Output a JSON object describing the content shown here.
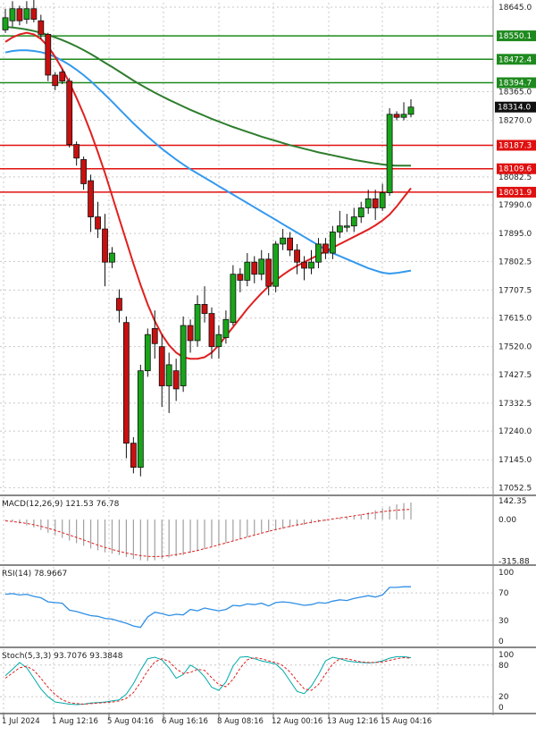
{
  "chart_data": [
    {
      "type": "candlestick",
      "panel": "price",
      "y_axis_ticks": [
        "18645.0",
        "18365.0",
        "18270.0",
        "18082.5",
        "17990.0",
        "17895.0",
        "17802.5",
        "17707.5",
        "17615.0",
        "17520.0",
        "17427.5",
        "17332.5",
        "17240.0",
        "17145.0",
        "17052.5"
      ],
      "ylim": [
        17030,
        18660
      ],
      "levels": [
        {
          "value": 18550.1,
          "label": "18550.1",
          "color": "#1e8a1e"
        },
        {
          "value": 18472.4,
          "label": "18472.4",
          "color": "#1e8a1e"
        },
        {
          "value": 18394.7,
          "label": "18394.7",
          "color": "#1e8a1e"
        },
        {
          "value": 18187.3,
          "label": "18187.3",
          "color": "#e01010"
        },
        {
          "value": 18109.6,
          "label": "18109.6",
          "color": "#e01010"
        },
        {
          "value": 18031.9,
          "label": "18031.9",
          "color": "#e01010"
        }
      ],
      "last_price": {
        "value": 18314.0,
        "label": "18314.0"
      },
      "candles": [
        [
          18570,
          18610,
          18640,
          18560
        ],
        [
          18600,
          18640,
          18665,
          18580
        ],
        [
          18640,
          18600,
          18650,
          18585
        ],
        [
          18605,
          18640,
          18665,
          18590
        ],
        [
          18640,
          18605,
          18680,
          18595
        ],
        [
          18600,
          18555,
          18620,
          18540
        ],
        [
          18555,
          18420,
          18560,
          18400
        ],
        [
          18420,
          18385,
          18430,
          18370
        ],
        [
          18430,
          18400,
          18440,
          18390
        ],
        [
          18400,
          18190,
          18410,
          18180
        ],
        [
          18190,
          18145,
          18200,
          18120
        ],
        [
          18140,
          18060,
          18150,
          18040
        ],
        [
          18070,
          17950,
          18090,
          17900
        ],
        [
          17950,
          17910,
          18000,
          17880
        ],
        [
          17910,
          17800,
          17960,
          17720
        ],
        [
          17800,
          17830,
          17850,
          17780
        ],
        [
          17680,
          17640,
          17710,
          17600
        ],
        [
          17600,
          17200,
          17620,
          17150
        ],
        [
          17200,
          17120,
          17220,
          17100
        ],
        [
          17120,
          17440,
          17460,
          17090
        ],
        [
          17440,
          17560,
          17580,
          17420
        ],
        [
          17580,
          17530,
          17640,
          17480
        ],
        [
          17520,
          17390,
          17560,
          17320
        ],
        [
          17390,
          17460,
          17500,
          17300
        ],
        [
          17440,
          17380,
          17480,
          17340
        ],
        [
          17390,
          17590,
          17620,
          17370
        ],
        [
          17590,
          17540,
          17610,
          17500
        ],
        [
          17540,
          17660,
          17690,
          17520
        ],
        [
          17660,
          17630,
          17720,
          17600
        ],
        [
          17630,
          17520,
          17650,
          17480
        ],
        [
          17520,
          17560,
          17590,
          17480
        ],
        [
          17550,
          17610,
          17640,
          17530
        ],
        [
          17600,
          17760,
          17790,
          17590
        ],
        [
          17760,
          17740,
          17780,
          17700
        ],
        [
          17740,
          17800,
          17830,
          17720
        ],
        [
          17800,
          17760,
          17820,
          17730
        ],
        [
          17760,
          17810,
          17840,
          17740
        ],
        [
          17810,
          17720,
          17830,
          17690
        ],
        [
          17720,
          17860,
          17870,
          17700
        ],
        [
          17860,
          17880,
          17910,
          17840
        ],
        [
          17880,
          17840,
          17900,
          17820
        ],
        [
          17840,
          17800,
          17860,
          17760
        ],
        [
          17800,
          17780,
          17820,
          17740
        ],
        [
          17780,
          17800,
          17840,
          17760
        ],
        [
          17800,
          17860,
          17880,
          17780
        ],
        [
          17860,
          17830,
          17880,
          17810
        ],
        [
          17830,
          17900,
          17920,
          17810
        ],
        [
          17900,
          17920,
          17970,
          17880
        ],
        [
          17920,
          17920,
          17960,
          17900
        ],
        [
          17920,
          17950,
          17980,
          17900
        ],
        [
          17950,
          17980,
          18000,
          17930
        ],
        [
          17980,
          18010,
          18040,
          17960
        ],
        [
          18010,
          17980,
          18040,
          17940
        ],
        [
          17980,
          18030,
          18060,
          17970
        ],
        [
          18030,
          18290,
          18310,
          18020
        ],
        [
          18290,
          18280,
          18300,
          18270
        ],
        [
          18280,
          18290,
          18330,
          18270
        ],
        [
          18290,
          18314,
          18340,
          18280
        ]
      ],
      "moving_averages": [
        {
          "color": "#2e7d2e",
          "values": [
            18580,
            18578,
            18575,
            18571,
            18566,
            18560,
            18553,
            18545,
            18536,
            18526,
            18515,
            18503,
            18490,
            18476,
            18461,
            18447,
            18432,
            18417,
            18402,
            18388,
            18375,
            18362,
            18350,
            18338,
            18327,
            18316,
            18305,
            18295,
            18285,
            18275,
            18266,
            18257,
            18248,
            18240,
            18232,
            18224,
            18216,
            18209,
            18202,
            18195,
            18188,
            18182,
            18176,
            18170,
            18164,
            18159,
            18154,
            18149,
            18144,
            18139,
            18135,
            18131,
            18127,
            18124,
            18121,
            18120,
            18120,
            18120
          ]
        },
        {
          "color": "#3399ee",
          "values": [
            18495,
            18500,
            18502,
            18502,
            18500,
            18496,
            18490,
            18480,
            18468,
            18454,
            18438,
            18420,
            18400,
            18378,
            18355,
            18332,
            18308,
            18284,
            18260,
            18238,
            18216,
            18196,
            18176,
            18158,
            18140,
            18124,
            18108,
            18094,
            18080,
            18066,
            18052,
            18038,
            18024,
            18010,
            17996,
            17982,
            17968,
            17954,
            17940,
            17926,
            17912,
            17898,
            17884,
            17870,
            17856,
            17842,
            17830,
            17820,
            17810,
            17800,
            17790,
            17780,
            17772,
            17765,
            17762,
            17764,
            17768,
            17772
          ]
        },
        {
          "color": "#e02020",
          "values": [
            18530,
            18545,
            18555,
            18560,
            18555,
            18540,
            18515,
            18480,
            18440,
            18395,
            18345,
            18290,
            18230,
            18165,
            18095,
            18020,
            17945,
            17870,
            17795,
            17725,
            17660,
            17605,
            17560,
            17525,
            17500,
            17485,
            17480,
            17480,
            17485,
            17500,
            17525,
            17555,
            17585,
            17615,
            17645,
            17672,
            17697,
            17720,
            17740,
            17758,
            17774,
            17788,
            17800,
            17812,
            17824,
            17836,
            17848,
            17860,
            17872,
            17884,
            17896,
            17908,
            17922,
            17938,
            17958,
            17985,
            18015,
            18045
          ]
        }
      ]
    },
    {
      "type": "histogram",
      "panel": "macd",
      "title": "MACD(12,26,9) 121.53 76.78",
      "y_axis_ticks": [
        "142.35",
        "0.00",
        "-315.88"
      ],
      "ylim": [
        -340,
        170
      ],
      "histogram": [
        -5,
        -15,
        -30,
        -45,
        -60,
        -80,
        -100,
        -120,
        -140,
        -160,
        -180,
        -200,
        -220,
        -235,
        -250,
        -260,
        -270,
        -285,
        -300,
        -310,
        -315,
        -310,
        -300,
        -290,
        -280,
        -270,
        -255,
        -240,
        -225,
        -210,
        -195,
        -180,
        -165,
        -150,
        -135,
        -120,
        -105,
        -95,
        -80,
        -70,
        -60,
        -50,
        -40,
        -30,
        -20,
        -10,
        0,
        10,
        20,
        30,
        40,
        55,
        70,
        85,
        100,
        115,
        125,
        130
      ],
      "signal": [
        -10,
        -15,
        -22,
        -30,
        -40,
        -52,
        -66,
        -82,
        -100,
        -118,
        -136,
        -155,
        -175,
        -195,
        -212,
        -228,
        -242,
        -255,
        -266,
        -275,
        -280,
        -282,
        -280,
        -275,
        -267,
        -258,
        -247,
        -235,
        -222,
        -208,
        -193,
        -178,
        -163,
        -148,
        -133,
        -118,
        -104,
        -90,
        -77,
        -64,
        -52,
        -41,
        -31,
        -21,
        -12,
        -4,
        4,
        12,
        20,
        28,
        36,
        44,
        52,
        60,
        66,
        71,
        75,
        77
      ]
    },
    {
      "type": "line",
      "panel": "rsi",
      "title": "RSI(14) 78.9667",
      "y_axis_ticks": [
        "100",
        "70",
        "30",
        "0"
      ],
      "ylim": [
        0,
        100
      ],
      "values": [
        68,
        69,
        67,
        68,
        65,
        63,
        57,
        56,
        55,
        45,
        43,
        40,
        37,
        36,
        33,
        32,
        29,
        26,
        22,
        20,
        35,
        42,
        40,
        37,
        39,
        38,
        46,
        44,
        48,
        46,
        44,
        46,
        52,
        51,
        54,
        53,
        55,
        51,
        56,
        57,
        56,
        54,
        52,
        53,
        56,
        55,
        58,
        60,
        59,
        62,
        64,
        66,
        64,
        67,
        78,
        78,
        79,
        79
      ]
    },
    {
      "type": "line",
      "panel": "stochastic",
      "title": "Stoch(5,3,3) 93.7076 93.3848",
      "y_axis_ticks": [
        "100",
        "80",
        "20",
        "0"
      ],
      "ylim": [
        0,
        100
      ],
      "series": [
        {
          "color": "#00aaaa",
          "values": [
            60,
            72,
            85,
            75,
            55,
            35,
            20,
            10,
            8,
            6,
            5,
            6,
            8,
            9,
            10,
            12,
            14,
            25,
            45,
            70,
            92,
            95,
            90,
            75,
            55,
            62,
            80,
            72,
            58,
            38,
            32,
            48,
            78,
            95,
            96,
            92,
            88,
            85,
            82,
            70,
            50,
            30,
            26,
            40,
            62,
            88,
            95,
            92,
            88,
            86,
            85,
            84,
            85,
            88,
            93,
            96,
            96,
            94
          ]
        },
        {
          "color": "#e02020",
          "values": [
            55,
            65,
            75,
            78,
            70,
            55,
            38,
            24,
            14,
            9,
            7,
            6,
            7,
            8,
            9,
            10,
            12,
            17,
            28,
            47,
            69,
            86,
            92,
            87,
            73,
            64,
            66,
            72,
            70,
            56,
            43,
            39,
            53,
            74,
            90,
            94,
            92,
            88,
            85,
            79,
            67,
            50,
            35,
            32,
            43,
            63,
            82,
            92,
            92,
            89,
            86,
            85,
            85,
            86,
            89,
            92,
            94,
            93
          ]
        }
      ]
    }
  ],
  "x_axis_labels": [
    "1 Jul 2024",
    "1 Aug 12:16",
    "5 Aug 04:16",
    "6 Aug 16:16",
    "8 Aug 08:16",
    "12 Aug 00:16",
    "13 Aug 12:16",
    "15 Aug 04:16"
  ],
  "colors": {
    "bull": "#19a519",
    "bear": "#c81010",
    "candle_outline": "#111111",
    "grid": "#c8c8c8",
    "macd_signal": "#e02020",
    "rsi_line": "#2f8fe5"
  }
}
